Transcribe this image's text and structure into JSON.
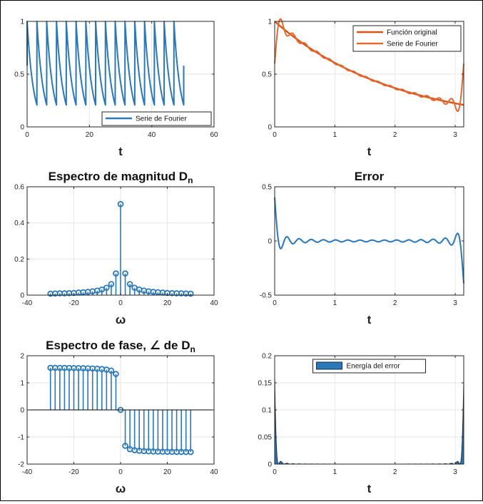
{
  "figure": {
    "colors": {
      "blue": "#2a78b8",
      "orange": "#d95319",
      "grid": "#e6e6e6",
      "axis": "#262626"
    }
  },
  "chart_data": [
    {
      "id": "p1",
      "type": "line",
      "title": "",
      "xlabel": "t",
      "ylabel": "",
      "xlim": [
        0,
        60
      ],
      "ylim": [
        0,
        1
      ],
      "xticks": [
        "0",
        "20",
        "40",
        "60"
      ],
      "yticks": [
        "0",
        "0.5",
        "1"
      ],
      "legend": {
        "position": "bottom-right",
        "entries": [
          "Serie de Fourier"
        ]
      },
      "series": [
        {
          "name": "Serie de Fourier",
          "color": "#2a78b8",
          "shape": "periodic sawtooth e^(-t/2), period pi, t from 0 to 16 pi",
          "peak": 1.0,
          "trough": 0.15
        }
      ]
    },
    {
      "id": "p2",
      "type": "line",
      "title": "",
      "xlabel": "t",
      "ylabel": "",
      "xlim": [
        0,
        3.1416
      ],
      "ylim": [
        0,
        1
      ],
      "xticks": [
        "0",
        "1",
        "2",
        "3"
      ],
      "yticks": [
        "0",
        "0.5",
        "1"
      ],
      "legend": {
        "position": "top-right",
        "entries": [
          "Función original",
          "Serie de Fourier"
        ]
      },
      "series": [
        {
          "name": "Función original",
          "color": "#d95319",
          "shape": "e^(-t/2)"
        },
        {
          "name": "Serie de Fourier",
          "color": "#e36a30",
          "shape": "partial Fourier sum with Gibbs ripple"
        }
      ]
    },
    {
      "id": "p3",
      "type": "stem",
      "title": "Espectro de magnitud D",
      "title_sub": "n",
      "xlabel": "ω",
      "ylabel": "",
      "xlim": [
        -40,
        40
      ],
      "ylim": [
        0,
        0.6
      ],
      "xticks": [
        "-40",
        "-20",
        "0",
        "20",
        "40"
      ],
      "yticks": [
        "0",
        "0.2",
        "0.4",
        "0.6"
      ],
      "n": [
        -30,
        -28,
        -26,
        -24,
        -22,
        -20,
        -18,
        -16,
        -14,
        -12,
        -10,
        -8,
        -6,
        -4,
        -2,
        0,
        2,
        4,
        6,
        8,
        10,
        12,
        14,
        16,
        18,
        20,
        22,
        24,
        26,
        28,
        30
      ],
      "values": [
        0.008,
        0.009,
        0.01,
        0.01,
        0.011,
        0.012,
        0.014,
        0.016,
        0.018,
        0.021,
        0.025,
        0.031,
        0.041,
        0.061,
        0.12,
        0.504,
        0.12,
        0.061,
        0.041,
        0.031,
        0.025,
        0.021,
        0.018,
        0.016,
        0.014,
        0.012,
        0.011,
        0.01,
        0.01,
        0.009,
        0.008
      ]
    },
    {
      "id": "p4",
      "type": "line",
      "title": "Error",
      "xlabel": "t",
      "ylabel": "",
      "xlim": [
        0,
        3.1416
      ],
      "ylim": [
        -0.5,
        0.5
      ],
      "xticks": [
        "0",
        "1",
        "2",
        "3"
      ],
      "yticks": [
        "-0.5",
        "0",
        "0.5"
      ],
      "series": [
        {
          "name": "Error",
          "color": "#2a78b8",
          "shape": "ripple about 0, +0.4 at t=0, -0.4 at t=pi"
        }
      ]
    },
    {
      "id": "p5",
      "type": "stem",
      "title": "Espectro de fase, ∠ de D",
      "title_sub": "n",
      "xlabel": "ω",
      "ylabel": "",
      "xlim": [
        -40,
        40
      ],
      "ylim": [
        -2,
        2
      ],
      "xticks": [
        "-40",
        "-20",
        "0",
        "20",
        "40"
      ],
      "yticks": [
        "-2",
        "-1",
        "0",
        "1",
        "2"
      ],
      "n": [
        -30,
        -28,
        -26,
        -24,
        -22,
        -20,
        -18,
        -16,
        -14,
        -12,
        -10,
        -8,
        -6,
        -4,
        -2,
        0,
        2,
        4,
        6,
        8,
        10,
        12,
        14,
        16,
        18,
        20,
        22,
        24,
        26,
        28,
        30
      ],
      "values": [
        1.554,
        1.553,
        1.552,
        1.55,
        1.548,
        1.546,
        1.543,
        1.54,
        1.535,
        1.529,
        1.521,
        1.508,
        1.488,
        1.451,
        1.326,
        0,
        -1.326,
        -1.451,
        -1.488,
        -1.508,
        -1.521,
        -1.529,
        -1.535,
        -1.54,
        -1.543,
        -1.546,
        -1.548,
        -1.55,
        -1.552,
        -1.553,
        -1.554
      ]
    },
    {
      "id": "p6",
      "type": "area",
      "title": "",
      "xlabel": "t",
      "ylabel": "",
      "xlim": [
        0,
        3.1416
      ],
      "ylim": [
        0,
        0.2
      ],
      "xticks": [
        "0",
        "1",
        "2",
        "3"
      ],
      "yticks": [
        "0",
        "0.05",
        "0.1",
        "0.15",
        "0.2"
      ],
      "legend": {
        "position": "top-center",
        "entries": [
          "Energía del error"
        ]
      },
      "series": [
        {
          "name": "Energía del error",
          "color": "#2a78b8",
          "shape": "error squared, spikes of 0.16 at both ends"
        }
      ]
    }
  ]
}
